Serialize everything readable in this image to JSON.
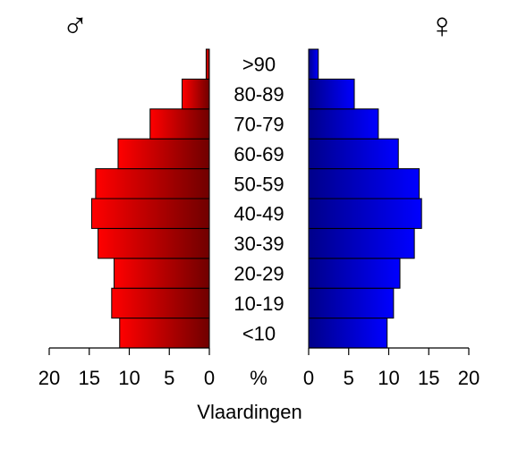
{
  "chart_data": {
    "type": "bar",
    "title": "Vlaardingen",
    "center_axis_label": "%",
    "categories": [
      "<10",
      "10-19",
      "20-29",
      "30-39",
      "40-49",
      "50-59",
      "60-69",
      "70-79",
      "80-89",
      ">90"
    ],
    "series": [
      {
        "name": "♂",
        "side": "left",
        "values": [
          11.2,
          12.2,
          11.9,
          13.9,
          14.7,
          14.2,
          11.4,
          7.4,
          3.4,
          0.4
        ]
      },
      {
        "name": "♀",
        "side": "right",
        "values": [
          9.8,
          10.6,
          11.4,
          13.2,
          14.1,
          13.8,
          11.2,
          8.7,
          5.7,
          1.2
        ]
      }
    ],
    "xlim": [
      0,
      20
    ],
    "ticks": [
      "0",
      "5",
      "10",
      "15",
      "20"
    ],
    "left_gradient": [
      "#ff0000",
      "#700000"
    ],
    "right_gradient": [
      "#00008a",
      "#0000ff"
    ],
    "bar_border_color": "#000000"
  }
}
